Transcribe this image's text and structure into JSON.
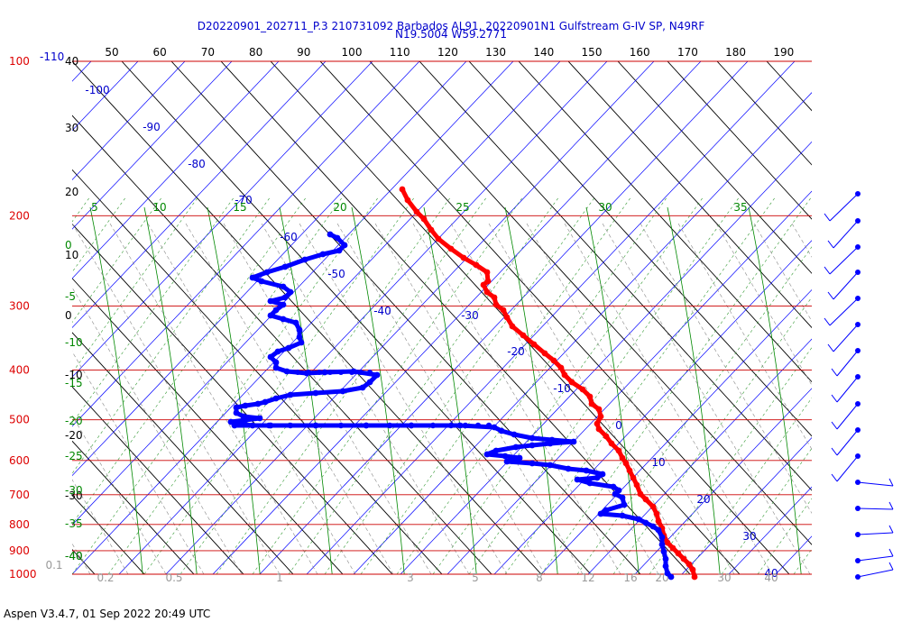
{
  "chart_data": {
    "type": "skew-t",
    "title_line1": "D20220901_202711_P.3 210731092 Barbados AL91, 20220901N1 Gulfstream G-IV SP, N49RF",
    "title_line2": "N19.5004 W59.2771",
    "footer": "Aspen V3.4.7, 01 Sep 2022  20:49 UTC",
    "pressure_ylim": [
      100,
      1000
    ],
    "pressure_levels": [
      {
        "p": 100,
        "label": "100"
      },
      {
        "p": 200,
        "label": "200"
      },
      {
        "p": 300,
        "label": "300"
      },
      {
        "p": 400,
        "label": "400"
      },
      {
        "p": 500,
        "label": "500"
      },
      {
        "p": 600,
        "label": "600"
      },
      {
        "p": 700,
        "label": "700"
      },
      {
        "p": 800,
        "label": "800"
      },
      {
        "p": 900,
        "label": "900"
      },
      {
        "p": 1000,
        "label": "1000"
      }
    ],
    "top_left_extra_label": "-110",
    "top_axis_labels": [
      "50",
      "60",
      "70",
      "80",
      "90",
      "100",
      "110",
      "120",
      "130",
      "140",
      "150",
      "160",
      "170",
      "180",
      "190"
    ],
    "left_height_labels": [
      {
        "v": "40",
        "y": 68
      },
      {
        "v": "30",
        "y": 142
      },
      {
        "v": "20",
        "y": 213
      },
      {
        "v": "10",
        "y": 283
      },
      {
        "v": "0",
        "y": 350
      },
      {
        "v": "-10",
        "y": 416
      },
      {
        "v": "-20",
        "y": 483
      },
      {
        "v": "-30",
        "y": 550
      },
      {
        "v": "-40",
        "y": 617
      }
    ],
    "isotherm_labels": [
      {
        "v": "-100",
        "x": 108,
        "y": 104
      },
      {
        "v": "-90",
        "x": 168,
        "y": 145
      },
      {
        "v": "-80",
        "x": 218,
        "y": 186
      },
      {
        "v": "-70",
        "x": 270,
        "y": 226
      },
      {
        "v": "-60",
        "x": 320,
        "y": 267
      },
      {
        "v": "-50",
        "x": 373,
        "y": 308
      },
      {
        "v": "-40",
        "x": 424,
        "y": 349
      },
      {
        "v": "-30",
        "x": 521,
        "y": 354
      },
      {
        "v": "-20",
        "x": 572,
        "y": 394
      },
      {
        "v": "-10",
        "x": 623,
        "y": 435
      },
      {
        "v": "0",
        "x": 686,
        "y": 476
      },
      {
        "v": "10",
        "x": 730,
        "y": 517
      },
      {
        "v": "20",
        "x": 780,
        "y": 558
      },
      {
        "v": "30",
        "x": 831,
        "y": 599
      },
      {
        "v": "40",
        "x": 855,
        "y": 640
      }
    ],
    "theta_e_labels": [
      {
        "v": "5",
        "x": 105,
        "y": 230
      },
      {
        "v": "10",
        "x": 177,
        "y": 230
      },
      {
        "v": "15",
        "x": 266,
        "y": 230
      },
      {
        "v": "20",
        "x": 377,
        "y": 230
      },
      {
        "v": "25",
        "x": 513,
        "y": 230
      },
      {
        "v": "30",
        "x": 671,
        "y": 230
      },
      {
        "v": "35",
        "x": 821,
        "y": 230
      }
    ],
    "adiabat_left_labels": [
      {
        "v": "0",
        "y": 272
      },
      {
        "v": "-5",
        "y": 329
      },
      {
        "v": "-10",
        "y": 380
      },
      {
        "v": "-15",
        "y": 425
      },
      {
        "v": "-20",
        "y": 467
      },
      {
        "v": "-25",
        "y": 506
      },
      {
        "v": "-30",
        "y": 544
      },
      {
        "v": "-35",
        "y": 581
      },
      {
        "v": "-40",
        "y": 617
      }
    ],
    "mixing_ratio_labels": [
      {
        "v": "0.1",
        "x": 60,
        "y": 627
      },
      {
        "v": "0.2",
        "x": 117,
        "y": 641
      },
      {
        "v": "0.5",
        "x": 193,
        "y": 641
      },
      {
        "v": "1",
        "x": 310,
        "y": 641
      },
      {
        "v": "3",
        "x": 455,
        "y": 641
      },
      {
        "v": "5",
        "x": 527,
        "y": 641
      },
      {
        "v": "8",
        "x": 598,
        "y": 641
      },
      {
        "v": "12",
        "x": 652,
        "y": 641
      },
      {
        "v": "16",
        "x": 699,
        "y": 641
      },
      {
        "v": "20",
        "x": 734,
        "y": 641
      },
      {
        "v": "30",
        "x": 803,
        "y": 641
      },
      {
        "v": "40",
        "x": 855,
        "y": 641
      }
    ],
    "series": [
      {
        "name": "temperature",
        "color": "#ff0000",
        "points": [
          [
            446,
            210
          ],
          [
            452,
            222
          ],
          [
            462,
            235
          ],
          [
            470,
            243
          ],
          [
            478,
            255
          ],
          [
            486,
            265
          ],
          [
            500,
            276
          ],
          [
            514,
            286
          ],
          [
            528,
            294
          ],
          [
            540,
            302
          ],
          [
            541,
            312
          ],
          [
            536,
            316
          ],
          [
            540,
            324
          ],
          [
            548,
            330
          ],
          [
            550,
            338
          ],
          [
            558,
            344
          ],
          [
            562,
            352
          ],
          [
            568,
            362
          ],
          [
            580,
            372
          ],
          [
            592,
            382
          ],
          [
            604,
            392
          ],
          [
            614,
            400
          ],
          [
            622,
            408
          ],
          [
            626,
            416
          ],
          [
            634,
            424
          ],
          [
            646,
            432
          ],
          [
            654,
            440
          ],
          [
            656,
            448
          ],
          [
            664,
            454
          ],
          [
            666,
            462
          ],
          [
            662,
            470
          ],
          [
            664,
            476
          ],
          [
            672,
            484
          ],
          [
            678,
            492
          ],
          [
            686,
            500
          ],
          [
            690,
            508
          ],
          [
            694,
            514
          ],
          [
            698,
            522
          ],
          [
            702,
            530
          ],
          [
            706,
            538
          ],
          [
            710,
            548
          ],
          [
            716,
            554
          ],
          [
            724,
            562
          ],
          [
            728,
            570
          ],
          [
            730,
            578
          ],
          [
            734,
            586
          ],
          [
            736,
            594
          ],
          [
            740,
            602
          ],
          [
            746,
            608
          ],
          [
            752,
            614
          ],
          [
            758,
            620
          ],
          [
            764,
            626
          ],
          [
            768,
            632
          ],
          [
            770,
            640
          ]
        ]
      },
      {
        "name": "dewpoint",
        "color": "#0000ff",
        "points": [
          [
            366,
            260
          ],
          [
            374,
            264
          ],
          [
            382,
            272
          ],
          [
            376,
            278
          ],
          [
            358,
            282
          ],
          [
            338,
            288
          ],
          [
            316,
            296
          ],
          [
            296,
            302
          ],
          [
            280,
            308
          ],
          [
            290,
            312
          ],
          [
            314,
            318
          ],
          [
            322,
            324
          ],
          [
            316,
            330
          ],
          [
            300,
            334
          ],
          [
            314,
            338
          ],
          [
            306,
            344
          ],
          [
            300,
            350
          ],
          [
            314,
            354
          ],
          [
            328,
            358
          ],
          [
            332,
            366
          ],
          [
            332,
            374
          ],
          [
            334,
            380
          ],
          [
            320,
            386
          ],
          [
            308,
            390
          ],
          [
            300,
            396
          ],
          [
            306,
            402
          ],
          [
            306,
            408
          ],
          [
            318,
            412
          ],
          [
            340,
            414
          ],
          [
            360,
            413
          ],
          [
            392,
            412
          ],
          [
            418,
            416
          ],
          [
            410,
            424
          ],
          [
            402,
            430
          ],
          [
            380,
            434
          ],
          [
            350,
            436
          ],
          [
            322,
            438
          ],
          [
            306,
            442
          ],
          [
            294,
            446
          ],
          [
            286,
            448
          ],
          [
            272,
            450
          ],
          [
            262,
            452
          ],
          [
            262,
            458
          ],
          [
            270,
            462
          ],
          [
            288,
            464
          ],
          [
            272,
            466
          ],
          [
            256,
            468
          ],
          [
            264,
            470
          ],
          [
            280,
            472
          ]
        ]
      },
      {
        "name": "dewpoint_lower",
        "color": "#0000ff",
        "points": [
          [
            260,
            472
          ],
          [
            300,
            472
          ],
          [
            350,
            472
          ],
          [
            406,
            472
          ],
          [
            456,
            472
          ],
          [
            510,
            472
          ],
          [
            548,
            474
          ],
          [
            556,
            478
          ],
          [
            570,
            482
          ],
          [
            590,
            486
          ],
          [
            612,
            488
          ],
          [
            636,
            490
          ],
          [
            610,
            492
          ],
          [
            590,
            494
          ],
          [
            572,
            496
          ],
          [
            550,
            500
          ],
          [
            540,
            504
          ],
          [
            560,
            506
          ],
          [
            576,
            508
          ],
          [
            562,
            512
          ],
          [
            590,
            514
          ],
          [
            610,
            516
          ],
          [
            630,
            520
          ],
          [
            650,
            522
          ],
          [
            668,
            526
          ],
          [
            662,
            530
          ],
          [
            640,
            532
          ],
          [
            654,
            536
          ],
          [
            680,
            540
          ],
          [
            686,
            544
          ],
          [
            682,
            548
          ],
          [
            690,
            552
          ],
          [
            692,
            560
          ],
          [
            672,
            566
          ],
          [
            666,
            570
          ],
          [
            690,
            572
          ],
          [
            708,
            576
          ],
          [
            716,
            580
          ],
          [
            724,
            584
          ],
          [
            730,
            588
          ],
          [
            734,
            596
          ],
          [
            734,
            604
          ],
          [
            736,
            612
          ],
          [
            738,
            620
          ],
          [
            738,
            628
          ],
          [
            740,
            636
          ],
          [
            744,
            640
          ]
        ]
      }
    ],
    "wind_barb_count": 16
  }
}
